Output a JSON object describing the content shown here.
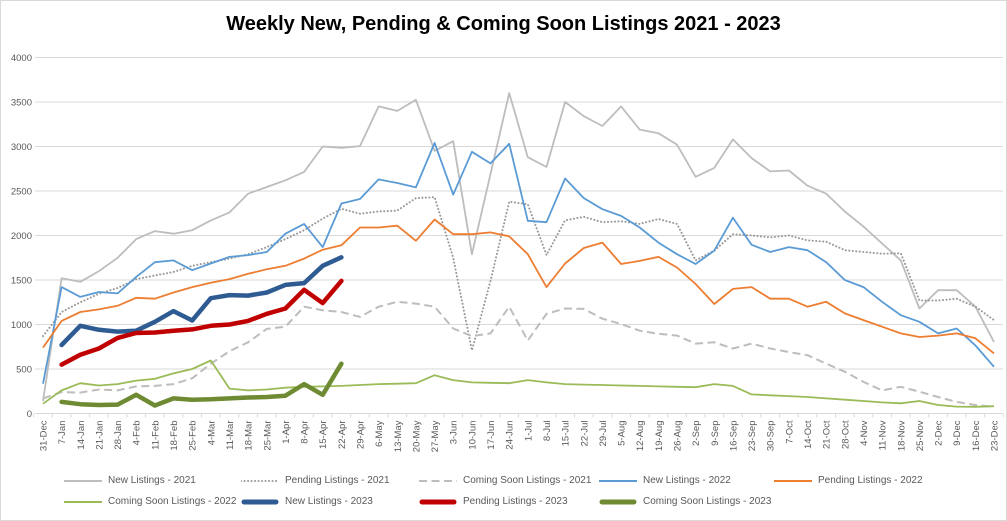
{
  "title": "Weekly New, Pending & Coming Soon Listings 2021 - 2023",
  "chart_data": {
    "type": "line",
    "title": "Weekly New, Pending & Coming Soon Listings 2021 - 2023",
    "ylim": [
      0,
      4000
    ],
    "y_ticks": [
      0,
      500,
      1000,
      1500,
      2000,
      2500,
      3000,
      3500,
      4000
    ],
    "grid": true,
    "legend_position": "bottom",
    "axis_label_color": "#595959",
    "gridline_color": "#d9d9d9",
    "categories": [
      "31-Dec",
      "7-Jan",
      "14-Jan",
      "21-Jan",
      "28-Jan",
      "4-Feb",
      "11-Feb",
      "18-Feb",
      "25-Feb",
      "4-Mar",
      "11-Mar",
      "18-Mar",
      "25-Mar",
      "1-Apr",
      "8-Apr",
      "15-Apr",
      "22-Apr",
      "29-Apr",
      "6-May",
      "13-May",
      "20-May",
      "27-May",
      "3-Jun",
      "10-Jun",
      "17-Jun",
      "24-Jun",
      "1-Jul",
      "8-Jul",
      "15-Jul",
      "22-Jul",
      "29-Jul",
      "5-Aug",
      "12-Aug",
      "19-Aug",
      "26-Aug",
      "2-Sep",
      "9-Sep",
      "16-Sep",
      "23-Sep",
      "30-Sep",
      "7-Oct",
      "14-Oct",
      "21-Oct",
      "28-Oct",
      "4-Nov",
      "11-Nov",
      "18-Nov",
      "25-Nov",
      "2-Dec",
      "9-Dec",
      "16-Dec",
      "23-Dec"
    ],
    "series": [
      {
        "name": "New Listings - 2021",
        "color": "#bdbdbd",
        "style": "solid",
        "thick": false,
        "values": [
          140,
          1520,
          1480,
          1600,
          1750,
          1960,
          2050,
          2020,
          2060,
          2170,
          2260,
          2470,
          2545,
          2620,
          2715,
          3000,
          2985,
          3005,
          3450,
          3400,
          3525,
          2950,
          3060,
          1790,
          2690,
          3600,
          2880,
          2770,
          3500,
          3340,
          3230,
          3450,
          3190,
          3150,
          3020,
          2660,
          2760,
          3080,
          2870,
          2720,
          2730,
          2560,
          2470,
          2270,
          2100,
          1910,
          1720,
          1180,
          1385,
          1385,
          1200,
          805
        ]
      },
      {
        "name": "Pending Listings - 2021",
        "color": "#999999",
        "style": "dotted",
        "thick": false,
        "values": [
          870,
          1140,
          1250,
          1345,
          1410,
          1510,
          1550,
          1590,
          1660,
          1700,
          1740,
          1790,
          1870,
          1960,
          2060,
          2190,
          2300,
          2245,
          2270,
          2280,
          2420,
          2430,
          1750,
          710,
          1490,
          2380,
          2350,
          1780,
          2170,
          2210,
          2150,
          2160,
          2130,
          2185,
          2130,
          1720,
          1830,
          2015,
          2000,
          1980,
          2000,
          1945,
          1930,
          1835,
          1815,
          1795,
          1800,
          1270,
          1270,
          1290,
          1200,
          1050
        ]
      },
      {
        "name": "Coming Soon Listings - 2021",
        "color": "#bdbdbd",
        "style": "dashed",
        "thick": false,
        "values": [
          170,
          240,
          235,
          270,
          260,
          305,
          310,
          330,
          395,
          560,
          700,
          800,
          950,
          975,
          1200,
          1160,
          1140,
          1085,
          1200,
          1255,
          1235,
          1200,
          955,
          870,
          900,
          1200,
          820,
          1120,
          1180,
          1175,
          1065,
          1005,
          930,
          895,
          875,
          785,
          800,
          730,
          785,
          730,
          690,
          655,
          560,
          470,
          355,
          260,
          300,
          245,
          185,
          130,
          95,
          75
        ]
      },
      {
        "name": "New Listings - 2022",
        "color": "#5b9bd5",
        "style": "solid",
        "thick": false,
        "values": [
          335,
          1420,
          1310,
          1365,
          1350,
          1535,
          1700,
          1720,
          1610,
          1685,
          1760,
          1780,
          1815,
          2020,
          2130,
          1870,
          2360,
          2410,
          2630,
          2590,
          2540,
          3040,
          2460,
          2940,
          2810,
          3030,
          2165,
          2150,
          2640,
          2420,
          2295,
          2220,
          2090,
          1920,
          1790,
          1680,
          1830,
          2200,
          1895,
          1815,
          1870,
          1835,
          1700,
          1500,
          1420,
          1255,
          1105,
          1030,
          900,
          955,
          765,
          525
        ]
      },
      {
        "name": "Pending Listings - 2022",
        "color": "#ed7d31",
        "style": "solid",
        "thick": false,
        "values": [
          740,
          1040,
          1140,
          1170,
          1210,
          1300,
          1290,
          1360,
          1420,
          1470,
          1510,
          1570,
          1620,
          1660,
          1740,
          1840,
          1890,
          2090,
          2090,
          2110,
          1940,
          2180,
          2015,
          2015,
          2035,
          1990,
          1790,
          1420,
          1685,
          1860,
          1920,
          1680,
          1715,
          1760,
          1640,
          1455,
          1230,
          1400,
          1420,
          1290,
          1290,
          1200,
          1255,
          1125,
          1050,
          975,
          900,
          860,
          875,
          900,
          845,
          675
        ]
      },
      {
        "name": "Coming Soon Listings - 2022",
        "color": "#9bbb59",
        "style": "solid",
        "thick": false,
        "values": [
          110,
          260,
          340,
          315,
          330,
          370,
          390,
          450,
          500,
          595,
          280,
          260,
          270,
          290,
          300,
          305,
          310,
          320,
          330,
          335,
          340,
          430,
          375,
          350,
          345,
          340,
          375,
          350,
          330,
          325,
          320,
          315,
          310,
          305,
          300,
          295,
          330,
          310,
          215,
          205,
          195,
          185,
          170,
          155,
          140,
          125,
          115,
          140,
          95,
          78,
          75,
          82
        ]
      },
      {
        "name": "New Listings - 2023",
        "color": "#2f5b93",
        "style": "solid",
        "thick": true,
        "values": [
          null,
          770,
          985,
          940,
          920,
          930,
          1030,
          1150,
          1045,
          1295,
          1330,
          1325,
          1360,
          1445,
          1465,
          1660,
          1755
        ]
      },
      {
        "name": "Pending Listings - 2023",
        "color": "#c00000",
        "style": "solid",
        "thick": true,
        "values": [
          null,
          550,
          660,
          730,
          850,
          905,
          910,
          930,
          945,
          985,
          1000,
          1040,
          1120,
          1180,
          1390,
          1240,
          1490
        ]
      },
      {
        "name": "Coming Soon Listings - 2023",
        "color": "#6e8b33",
        "style": "solid",
        "thick": true,
        "values": [
          null,
          130,
          105,
          95,
          100,
          210,
          90,
          170,
          155,
          160,
          170,
          180,
          185,
          200,
          330,
          210,
          560
        ]
      }
    ]
  }
}
